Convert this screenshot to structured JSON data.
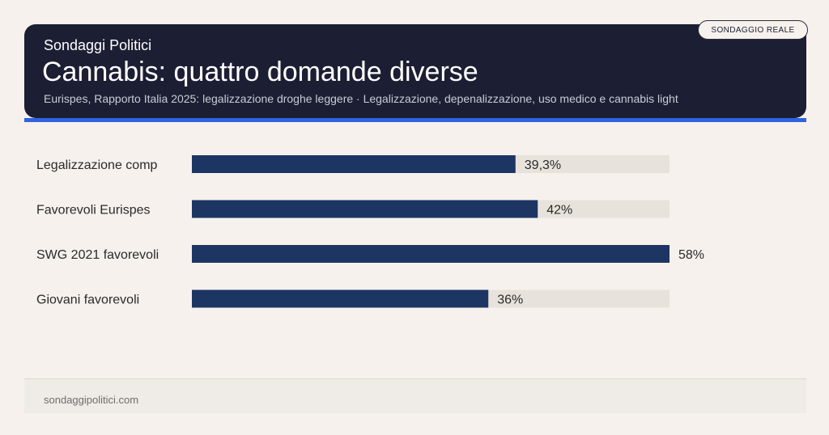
{
  "header": {
    "brand": "Sondaggi Politici",
    "title": "Cannabis: quattro domande diverse",
    "subtitle": "Eurispes, Rapporto Italia 2025: legalizzazione droghe leggere · Legalizzazione, depenalizzazione, uso medico e cannabis light",
    "badge": "SONDAGGIO REALE"
  },
  "footer": {
    "site": "sondaggipolitici.com"
  },
  "colors": {
    "header_bg": "#1c1f33",
    "accent": "#2f63e0",
    "bar": "#1d3563",
    "track": "#e8e2dc",
    "background": "#f6f1ec"
  },
  "chart_data": {
    "type": "bar",
    "orientation": "horizontal",
    "categories": [
      "Legalizzazione comp",
      "Favorevoli Eurispes",
      "SWG 2021 favorevoli",
      "Giovani favorevoli"
    ],
    "values": [
      39.3,
      42,
      58,
      36
    ],
    "value_labels": [
      "39,3%",
      "42%",
      "58%",
      "36%"
    ],
    "xlim": [
      0,
      58
    ],
    "grid": false
  }
}
